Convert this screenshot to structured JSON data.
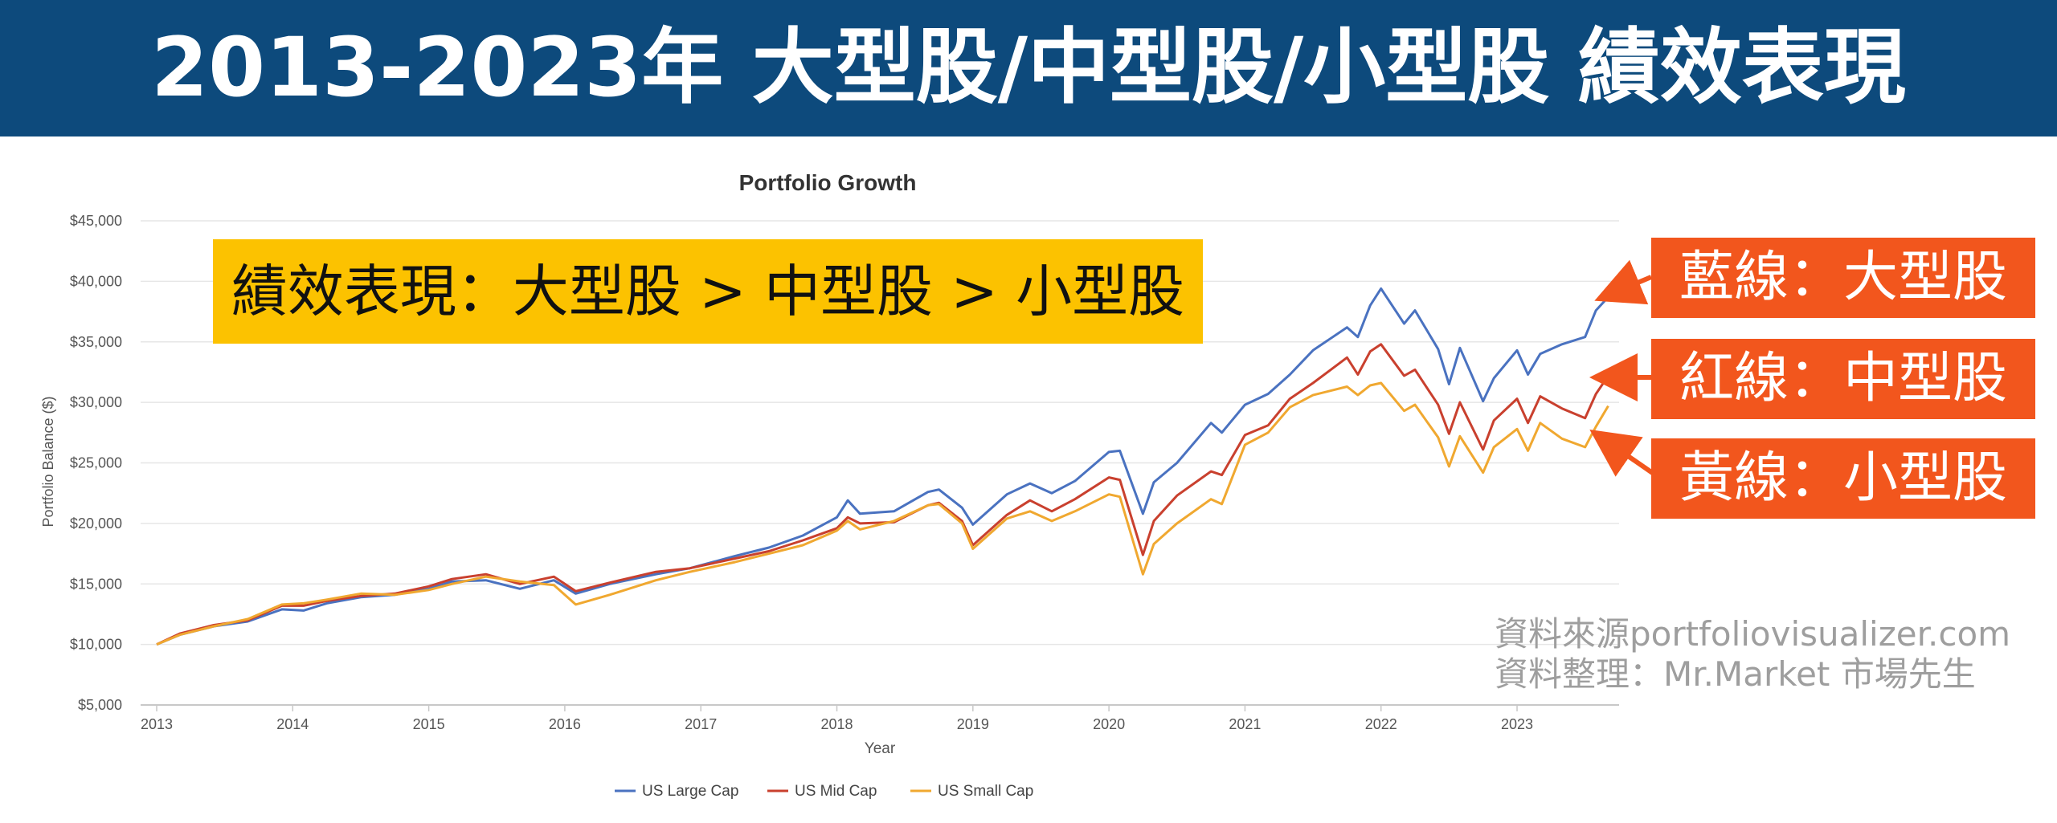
{
  "banner": {
    "title": "2013-2023年 大型股/中型股/小型股 績效表現"
  },
  "summary": {
    "text": "績效表現：大型股 > 中型股 > 小型股"
  },
  "callouts": [
    {
      "text": "藍線：大型股",
      "color": "#f2561d"
    },
    {
      "text": "紅線：中型股",
      "color": "#f2561d"
    },
    {
      "text": "黃線：小型股",
      "color": "#f2561d"
    }
  ],
  "source": {
    "line1": "資料來源portfoliovisualizer.com",
    "line2": "資料整理：Mr.Market 市場先生"
  },
  "chart_data": {
    "type": "line",
    "title": "Portfolio Growth",
    "xlabel": "Year",
    "ylabel": "Portfolio Balance ($)",
    "xlim": [
      2013,
      2023.75
    ],
    "ylim": [
      5000,
      45000
    ],
    "yticks": [
      5000,
      10000,
      15000,
      20000,
      25000,
      30000,
      35000,
      40000,
      45000
    ],
    "ytick_labels": [
      "$5,000",
      "$10,000",
      "$15,000",
      "$20,000",
      "$25,000",
      "$30,000",
      "$35,000",
      "$40,000",
      "$45,000"
    ],
    "xticks": [
      2013,
      2014,
      2015,
      2016,
      2017,
      2018,
      2019,
      2020,
      2021,
      2022,
      2023
    ],
    "xtick_labels": [
      "2013",
      "2014",
      "2015",
      "2016",
      "2017",
      "2018",
      "2019",
      "2020",
      "2021",
      "2022",
      "2023"
    ],
    "grid": "horizontal",
    "legend_position": "bottom-center",
    "series": [
      {
        "name": "US Large Cap",
        "color": "#4a72c0",
        "points": [
          [
            2013.0,
            10000
          ],
          [
            2013.17,
            10800
          ],
          [
            2013.42,
            11500
          ],
          [
            2013.67,
            11900
          ],
          [
            2013.92,
            12900
          ],
          [
            2014.08,
            12800
          ],
          [
            2014.25,
            13400
          ],
          [
            2014.5,
            13900
          ],
          [
            2014.75,
            14100
          ],
          [
            2015.0,
            14600
          ],
          [
            2015.17,
            15200
          ],
          [
            2015.42,
            15300
          ],
          [
            2015.67,
            14600
          ],
          [
            2015.92,
            15300
          ],
          [
            2016.08,
            14200
          ],
          [
            2016.33,
            15000
          ],
          [
            2016.67,
            15800
          ],
          [
            2016.92,
            16300
          ],
          [
            2017.25,
            17300
          ],
          [
            2017.5,
            18000
          ],
          [
            2017.75,
            19000
          ],
          [
            2018.0,
            20500
          ],
          [
            2018.08,
            21900
          ],
          [
            2018.17,
            20800
          ],
          [
            2018.42,
            21000
          ],
          [
            2018.67,
            22600
          ],
          [
            2018.75,
            22800
          ],
          [
            2018.92,
            21300
          ],
          [
            2019.0,
            19900
          ],
          [
            2019.25,
            22400
          ],
          [
            2019.42,
            23300
          ],
          [
            2019.58,
            22500
          ],
          [
            2019.75,
            23500
          ],
          [
            2020.0,
            25900
          ],
          [
            2020.08,
            26000
          ],
          [
            2020.25,
            20800
          ],
          [
            2020.33,
            23400
          ],
          [
            2020.5,
            25000
          ],
          [
            2020.75,
            28300
          ],
          [
            2020.83,
            27500
          ],
          [
            2021.0,
            29800
          ],
          [
            2021.17,
            30700
          ],
          [
            2021.33,
            32300
          ],
          [
            2021.5,
            34300
          ],
          [
            2021.75,
            36200
          ],
          [
            2021.83,
            35400
          ],
          [
            2021.92,
            38000
          ],
          [
            2022.0,
            39400
          ],
          [
            2022.17,
            36500
          ],
          [
            2022.25,
            37600
          ],
          [
            2022.42,
            34400
          ],
          [
            2022.5,
            31500
          ],
          [
            2022.58,
            34500
          ],
          [
            2022.75,
            30100
          ],
          [
            2022.83,
            32000
          ],
          [
            2023.0,
            34300
          ],
          [
            2023.08,
            32300
          ],
          [
            2023.17,
            34000
          ],
          [
            2023.33,
            34800
          ],
          [
            2023.5,
            35400
          ],
          [
            2023.58,
            37600
          ],
          [
            2023.67,
            38700
          ]
        ]
      },
      {
        "name": "US Mid Cap",
        "color": "#c9402e",
        "points": [
          [
            2013.0,
            10000
          ],
          [
            2013.17,
            10900
          ],
          [
            2013.42,
            11600
          ],
          [
            2013.67,
            12000
          ],
          [
            2013.92,
            13200
          ],
          [
            2014.08,
            13200
          ],
          [
            2014.25,
            13600
          ],
          [
            2014.5,
            14000
          ],
          [
            2014.75,
            14200
          ],
          [
            2015.0,
            14800
          ],
          [
            2015.17,
            15400
          ],
          [
            2015.42,
            15800
          ],
          [
            2015.67,
            15000
          ],
          [
            2015.92,
            15600
          ],
          [
            2016.08,
            14400
          ],
          [
            2016.33,
            15100
          ],
          [
            2016.67,
            16000
          ],
          [
            2016.92,
            16300
          ],
          [
            2017.25,
            17100
          ],
          [
            2017.5,
            17700
          ],
          [
            2017.75,
            18600
          ],
          [
            2018.0,
            19600
          ],
          [
            2018.08,
            20500
          ],
          [
            2018.17,
            20000
          ],
          [
            2018.42,
            20100
          ],
          [
            2018.67,
            21500
          ],
          [
            2018.75,
            21700
          ],
          [
            2018.92,
            20200
          ],
          [
            2019.0,
            18200
          ],
          [
            2019.25,
            20700
          ],
          [
            2019.42,
            21900
          ],
          [
            2019.58,
            21000
          ],
          [
            2019.75,
            22000
          ],
          [
            2020.0,
            23800
          ],
          [
            2020.08,
            23600
          ],
          [
            2020.25,
            17400
          ],
          [
            2020.33,
            20200
          ],
          [
            2020.5,
            22300
          ],
          [
            2020.75,
            24300
          ],
          [
            2020.83,
            24000
          ],
          [
            2021.0,
            27300
          ],
          [
            2021.17,
            28100
          ],
          [
            2021.33,
            30300
          ],
          [
            2021.5,
            31600
          ],
          [
            2021.75,
            33700
          ],
          [
            2021.83,
            32300
          ],
          [
            2021.92,
            34200
          ],
          [
            2022.0,
            34800
          ],
          [
            2022.17,
            32200
          ],
          [
            2022.25,
            32700
          ],
          [
            2022.42,
            29800
          ],
          [
            2022.5,
            27400
          ],
          [
            2022.58,
            30000
          ],
          [
            2022.75,
            26100
          ],
          [
            2022.83,
            28500
          ],
          [
            2023.0,
            30300
          ],
          [
            2023.08,
            28300
          ],
          [
            2023.17,
            30500
          ],
          [
            2023.33,
            29500
          ],
          [
            2023.5,
            28700
          ],
          [
            2023.58,
            30700
          ],
          [
            2023.67,
            32200
          ]
        ]
      },
      {
        "name": "US Small Cap",
        "color": "#f0a830",
        "points": [
          [
            2013.0,
            10000
          ],
          [
            2013.17,
            10800
          ],
          [
            2013.42,
            11500
          ],
          [
            2013.67,
            12100
          ],
          [
            2013.92,
            13300
          ],
          [
            2014.08,
            13400
          ],
          [
            2014.25,
            13700
          ],
          [
            2014.5,
            14200
          ],
          [
            2014.75,
            14100
          ],
          [
            2015.0,
            14500
          ],
          [
            2015.17,
            15000
          ],
          [
            2015.42,
            15600
          ],
          [
            2015.67,
            15200
          ],
          [
            2015.92,
            14900
          ],
          [
            2016.08,
            13300
          ],
          [
            2016.33,
            14100
          ],
          [
            2016.67,
            15300
          ],
          [
            2016.92,
            16000
          ],
          [
            2017.25,
            16800
          ],
          [
            2017.5,
            17500
          ],
          [
            2017.75,
            18200
          ],
          [
            2018.0,
            19400
          ],
          [
            2018.08,
            20200
          ],
          [
            2018.17,
            19500
          ],
          [
            2018.42,
            20200
          ],
          [
            2018.67,
            21500
          ],
          [
            2018.75,
            21600
          ],
          [
            2018.92,
            20000
          ],
          [
            2019.0,
            17900
          ],
          [
            2019.25,
            20400
          ],
          [
            2019.42,
            21000
          ],
          [
            2019.58,
            20200
          ],
          [
            2019.75,
            21000
          ],
          [
            2020.0,
            22400
          ],
          [
            2020.08,
            22200
          ],
          [
            2020.25,
            15800
          ],
          [
            2020.33,
            18300
          ],
          [
            2020.5,
            20000
          ],
          [
            2020.75,
            22000
          ],
          [
            2020.83,
            21600
          ],
          [
            2021.0,
            26500
          ],
          [
            2021.17,
            27500
          ],
          [
            2021.33,
            29600
          ],
          [
            2021.5,
            30600
          ],
          [
            2021.75,
            31300
          ],
          [
            2021.83,
            30600
          ],
          [
            2021.92,
            31400
          ],
          [
            2022.0,
            31600
          ],
          [
            2022.17,
            29300
          ],
          [
            2022.25,
            29800
          ],
          [
            2022.42,
            27100
          ],
          [
            2022.5,
            24700
          ],
          [
            2022.58,
            27200
          ],
          [
            2022.75,
            24200
          ],
          [
            2022.83,
            26300
          ],
          [
            2023.0,
            27800
          ],
          [
            2023.08,
            26000
          ],
          [
            2023.17,
            28300
          ],
          [
            2023.33,
            27000
          ],
          [
            2023.5,
            26300
          ],
          [
            2023.58,
            28000
          ],
          [
            2023.67,
            29700
          ]
        ]
      }
    ]
  }
}
